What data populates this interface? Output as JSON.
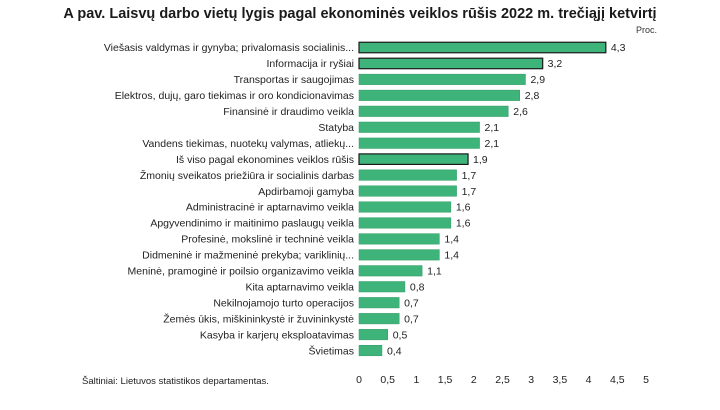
{
  "chart_data": {
    "type": "bar",
    "orientation": "horizontal",
    "title": "A pav. Laisvų darbo vietų lygis pagal ekonominės veiklos rūšis 2022 m. trečiąjį ketvirtį",
    "unit": "Proc.",
    "source": "Šaltiniai: Lietuvos statistikos departamentas.",
    "categories": [
      "Viešasis valdymas ir gynyba; privalomasis socialinis...",
      "Informacija ir ryšiai",
      "Transportas ir saugojimas",
      "Elektros, dujų, garo tiekimas ir oro kondicionavimas",
      "Finansinė ir draudimo veikla",
      "Statyba",
      "Vandens tiekimas, nuotekų valymas, atliekų...",
      "Iš viso pagal ekonomines veiklos rūšis",
      "Žmonių sveikatos priežiūra ir socialinis darbas",
      "Apdirbamoji gamyba",
      "Administracinė ir aptarnavimo veikla",
      "Apgyvendinimo ir maitinimo paslaugų veikla",
      "Profesinė, mokslinė ir techninė veikla",
      "Didmeninė ir mažmeninė prekyba; variklinių...",
      "Meninė, pramoginė ir poilsio organizavimo veikla",
      "Kita aptarnavimo veikla",
      "Nekilnojamojo turto operacijos",
      "Žemės ūkis, miškininkystė ir žuvininkystė",
      "Kasyba ir karjerų eksploatavimas",
      "Švietimas"
    ],
    "values": [
      4.3,
      3.2,
      2.9,
      2.8,
      2.6,
      2.1,
      2.1,
      1.9,
      1.7,
      1.7,
      1.6,
      1.6,
      1.4,
      1.4,
      1.1,
      0.8,
      0.7,
      0.7,
      0.5,
      0.4
    ],
    "value_labels": [
      "4,3",
      "3,2",
      "2,9",
      "2,8",
      "2,6",
      "2,1",
      "2,1",
      "1,9",
      "1,7",
      "1,7",
      "1,6",
      "1,6",
      "1,4",
      "1,4",
      "1,1",
      "0,8",
      "0,7",
      "0,7",
      "0,5",
      "0,4"
    ],
    "highlighted": [
      0,
      1,
      7
    ],
    "xlim": [
      0,
      5
    ],
    "x_ticks": [
      0,
      0.5,
      1,
      1.5,
      2,
      2.5,
      3,
      3.5,
      4,
      4.5,
      5
    ],
    "x_tick_labels": [
      "0",
      "0,5",
      "1",
      "1,5",
      "2",
      "2,5",
      "3",
      "3,5",
      "4",
      "4,5",
      "5"
    ],
    "grid": false,
    "colors": {
      "bar": "#3fb47a",
      "bar_outline": "#2f9a62",
      "highlight_outline": "#1a1a1a"
    }
  }
}
